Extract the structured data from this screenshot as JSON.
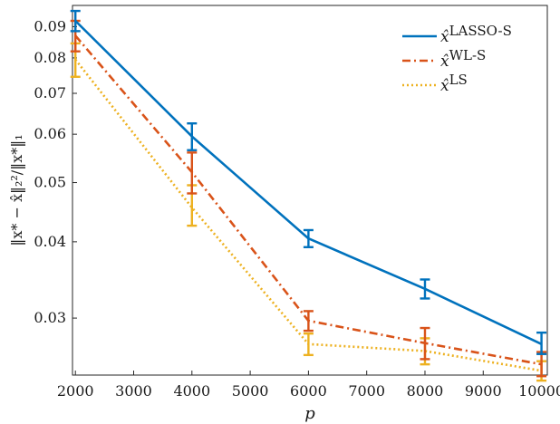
{
  "chart_data": {
    "type": "line",
    "x": [
      2000,
      4000,
      6000,
      8000,
      10000
    ],
    "xlabel": "p",
    "ylabel": "‖x* − x̂‖₂²/‖x*‖₁",
    "xlim": [
      1950,
      10100
    ],
    "ylim": [
      0.0242,
      0.0975
    ],
    "yscale": "log",
    "grid": false,
    "legend_position": "top-right",
    "xticks": [
      2000,
      3000,
      4000,
      5000,
      6000,
      7000,
      8000,
      9000,
      10000
    ],
    "xtick_labels": [
      "2000",
      "3000",
      "4000",
      "5000",
      "6000",
      "7000",
      "8000",
      "9000",
      "10000"
    ],
    "yticks": [
      0.03,
      0.04,
      0.05,
      0.06,
      0.07,
      0.08,
      0.09
    ],
    "ytick_labels": [
      "0.03",
      "0.04",
      "0.05",
      "0.06",
      "0.07",
      "0.08",
      "0.09"
    ],
    "series": [
      {
        "name": "x̂LASSO-S",
        "name_base": "x̂",
        "name_sup": "LASSO-S",
        "color": "#0072BD",
        "dash": "solid",
        "values": [
          0.092,
          0.0595,
          0.0405,
          0.0335,
          0.0272
        ],
        "err_low": [
          0.0885,
          0.0565,
          0.0392,
          0.0323,
          0.0262
        ],
        "err_high": [
          0.0955,
          0.0625,
          0.0418,
          0.0347,
          0.0284
        ]
      },
      {
        "name": "x̂WL-S",
        "name_base": "x̂",
        "name_sup": "WL-S",
        "color": "#D95319",
        "dash": "dashdot",
        "values": [
          0.087,
          0.052,
          0.0297,
          0.0273,
          0.0252
        ],
        "err_low": [
          0.082,
          0.048,
          0.0286,
          0.0257,
          0.0241
        ],
        "err_high": [
          0.092,
          0.056,
          0.0308,
          0.0289,
          0.0264
        ]
      },
      {
        "name": "x̂LS",
        "name_base": "x̂",
        "name_sup": "LS",
        "color": "#EDB120",
        "dash": "dotted",
        "values": [
          0.0795,
          0.0455,
          0.0272,
          0.0265,
          0.0246
        ],
        "err_low": [
          0.0745,
          0.0425,
          0.0261,
          0.0252,
          0.0237
        ],
        "err_high": [
          0.0845,
          0.0495,
          0.0283,
          0.0278,
          0.0255
        ]
      }
    ]
  }
}
